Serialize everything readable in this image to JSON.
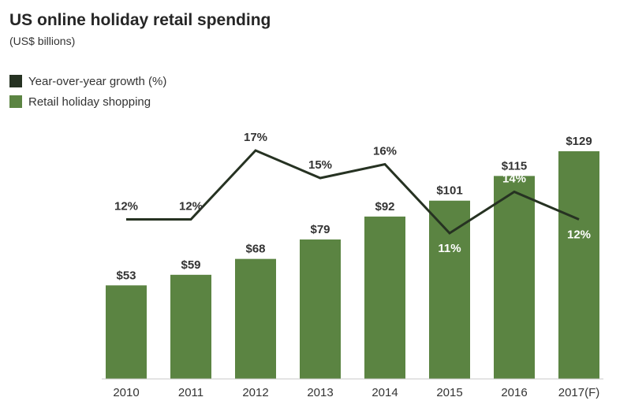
{
  "header": {
    "title": "US online holiday retail spending",
    "subtitle": "(US$ billions)"
  },
  "legend": [
    {
      "label": "Year-over-year growth (%)",
      "color": "#263222"
    },
    {
      "label": "Retail holiday shopping",
      "color": "#5b8442"
    }
  ],
  "chart_data": {
    "type": "bar",
    "title": "US online holiday retail spending",
    "subtitle": "(US$ billions)",
    "categories": [
      "2010",
      "2011",
      "2012",
      "2013",
      "2014",
      "2015",
      "2016",
      "2017(F)"
    ],
    "series": [
      {
        "name": "Retail holiday shopping",
        "type": "bar",
        "values": [
          53,
          59,
          68,
          79,
          92,
          101,
          115,
          129
        ],
        "labels": [
          "$53",
          "$59",
          "$68",
          "$79",
          "$92",
          "$101",
          "$115",
          "$129"
        ],
        "color": "#5b8442"
      },
      {
        "name": "Year-over-year growth (%)",
        "type": "line",
        "values": [
          12,
          12,
          17,
          15,
          16,
          11,
          14,
          12
        ],
        "labels": [
          "12%",
          "12%",
          "17%",
          "15%",
          "16%",
          "11%",
          "14%",
          "12%"
        ],
        "color": "#263222"
      }
    ],
    "ylim": [
      0,
      129
    ],
    "growth_ylim": [
      11,
      17
    ],
    "grid": false,
    "legend_position": "top-left"
  }
}
